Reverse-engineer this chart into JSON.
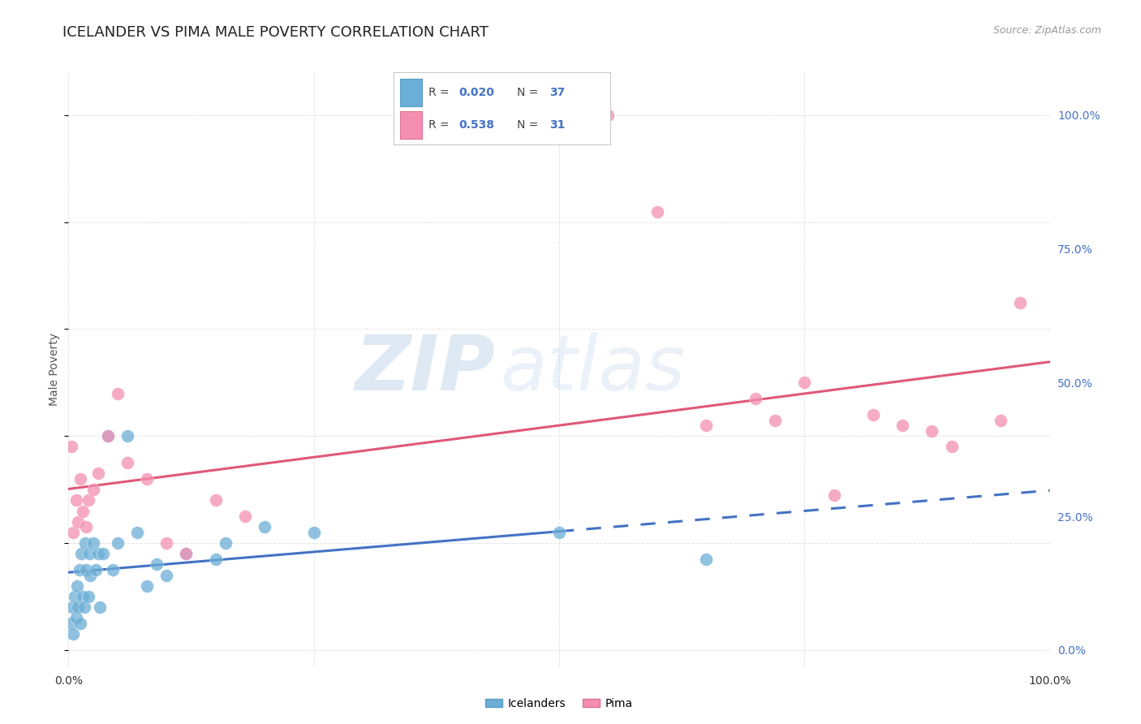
{
  "title": "ICELANDER VS PIMA MALE POVERTY CORRELATION CHART",
  "source": "Source: ZipAtlas.com",
  "ylabel": "Male Poverty",
  "xlim": [
    0,
    100
  ],
  "ylim": [
    -3,
    108
  ],
  "x_ticks": [
    0,
    25,
    50,
    75,
    100
  ],
  "x_tick_labels": [
    "0.0%",
    "",
    "",
    "",
    "100.0%"
  ],
  "y_ticks": [
    0,
    25,
    50,
    75,
    100
  ],
  "y_tick_labels": [
    "0.0%",
    "25.0%",
    "50.0%",
    "75.0%",
    "100.0%"
  ],
  "icelander_color": "#6baed6",
  "icelander_edge": "#5a9ec6",
  "pima_color": "#f48fb1",
  "pima_edge": "#e07090",
  "icelander_R": 0.02,
  "icelander_N": 37,
  "pima_R": 0.538,
  "pima_N": 31,
  "legend_label_icelander": "Icelanders",
  "legend_label_pima": "Pima",
  "icelander_x": [
    0.2,
    0.4,
    0.5,
    0.6,
    0.8,
    0.9,
    1.0,
    1.1,
    1.2,
    1.3,
    1.5,
    1.6,
    1.7,
    1.8,
    2.0,
    2.1,
    2.2,
    2.5,
    2.8,
    3.0,
    3.2,
    3.5,
    4.0,
    4.5,
    5.0,
    6.0,
    7.0,
    8.0,
    9.0,
    10.0,
    12.0,
    15.0,
    16.0,
    20.0,
    25.0,
    50.0,
    65.0
  ],
  "icelander_y": [
    5,
    8,
    3,
    10,
    6,
    12,
    8,
    15,
    5,
    18,
    10,
    8,
    20,
    15,
    10,
    18,
    14,
    20,
    15,
    18,
    8,
    18,
    40,
    15,
    20,
    40,
    22,
    12,
    16,
    14,
    18,
    17,
    20,
    23,
    22,
    22,
    17
  ],
  "pima_x": [
    0.3,
    0.5,
    0.8,
    1.0,
    1.2,
    1.5,
    1.8,
    2.0,
    2.5,
    3.0,
    4.0,
    5.0,
    6.0,
    8.0,
    10.0,
    12.0,
    15.0,
    18.0,
    55.0,
    60.0,
    65.0,
    70.0,
    72.0,
    75.0,
    78.0,
    82.0,
    85.0,
    88.0,
    90.0,
    95.0,
    97.0
  ],
  "pima_y": [
    38,
    22,
    28,
    24,
    32,
    26,
    23,
    28,
    30,
    33,
    40,
    48,
    35,
    32,
    20,
    18,
    28,
    25,
    100,
    82,
    42,
    47,
    43,
    50,
    29,
    44,
    42,
    41,
    38,
    43,
    65
  ],
  "watermark_zip": "ZIP",
  "watermark_atlas": "atlas",
  "background_color": "#ffffff",
  "grid_color": "#dddddd",
  "title_fontsize": 13,
  "axis_label_fontsize": 10,
  "tick_label_color_right": "#4472c4",
  "regression_blue": "#4472c4",
  "regression_pink": "#e05878",
  "solid_cutoff": 50
}
